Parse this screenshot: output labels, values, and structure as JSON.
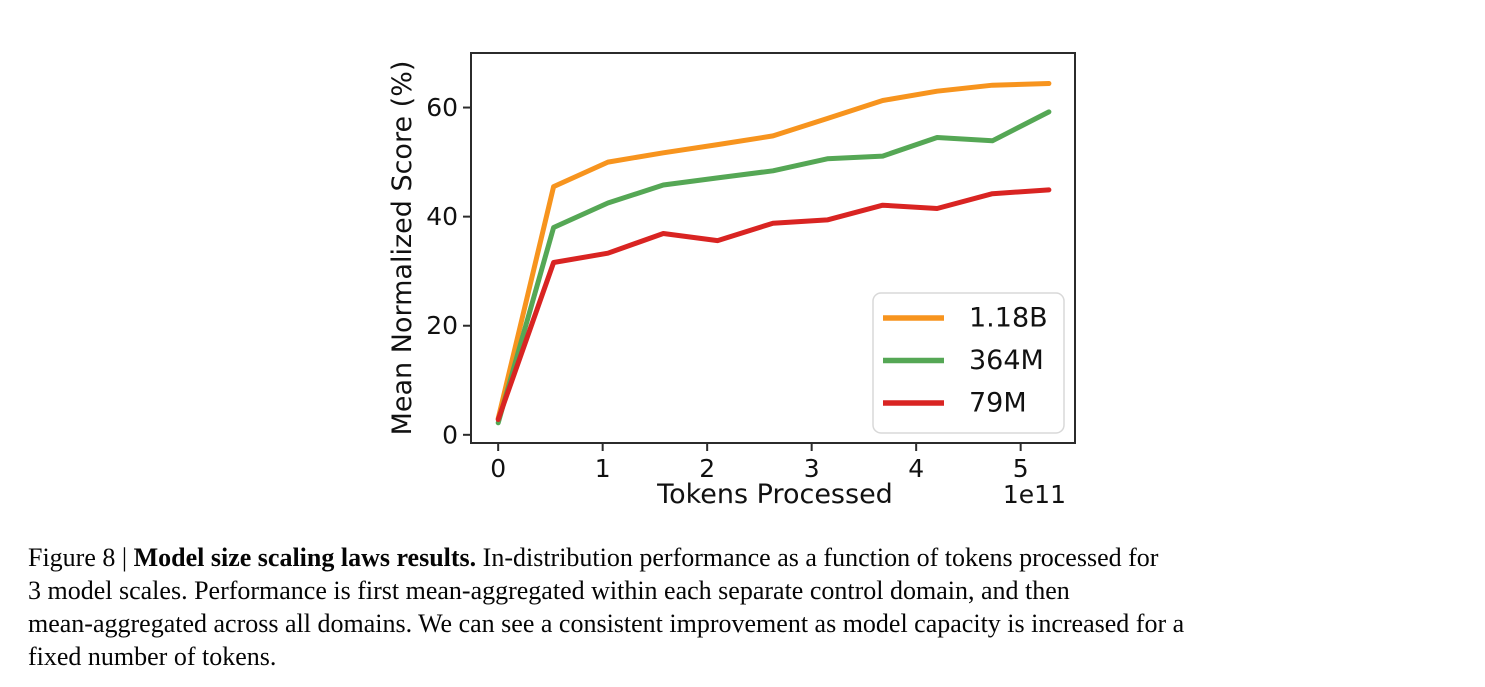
{
  "figure": {
    "caption": {
      "prefix": "Figure 8 | ",
      "bold": "Model size scaling laws results.",
      "line1_rest": " In-distribution performance as a function of tokens processed for",
      "line2": "3 model scales. Performance is first mean-aggregated within each separate control domain, and then",
      "line3": "mean-aggregated across all domains. We can see a consistent improvement as model capacity is increased for a",
      "line4": "fixed number of tokens."
    }
  },
  "chart_data": {
    "type": "line",
    "title": "",
    "xlabel": "Tokens Processed",
    "ylabel": "Mean Normalized Score (%)",
    "x_offset_label": "1e11",
    "x_unit": "1e11 tokens",
    "x": [
      0,
      0.53,
      1.05,
      1.58,
      2.1,
      2.63,
      3.15,
      3.68,
      4.2,
      4.73,
      5.27
    ],
    "series": [
      {
        "name": "1.18B",
        "color": "#F7941E",
        "values": [
          3.0,
          45.5,
          50.0,
          51.7,
          53.2,
          54.8,
          58.0,
          61.3,
          63.0,
          64.1,
          64.4
        ]
      },
      {
        "name": "364M",
        "color": "#55A755",
        "values": [
          2.2,
          38.0,
          42.5,
          45.8,
          47.1,
          48.4,
          50.6,
          51.1,
          54.5,
          53.9,
          59.2
        ]
      },
      {
        "name": "79M",
        "color": "#D92422",
        "values": [
          2.8,
          31.6,
          33.3,
          36.9,
          35.6,
          38.8,
          39.4,
          42.1,
          41.5,
          44.2,
          44.9
        ]
      }
    ],
    "xticks": [
      0,
      1,
      2,
      3,
      4,
      5
    ],
    "yticks": [
      0,
      20,
      40,
      60
    ],
    "xlim": [
      -0.26,
      5.52
    ],
    "ylim": [
      -1.5,
      70
    ],
    "grid": false,
    "legend_position": "lower right",
    "spine_color": "#2b2b2b",
    "legend_border_color": "#d8d8d8"
  }
}
